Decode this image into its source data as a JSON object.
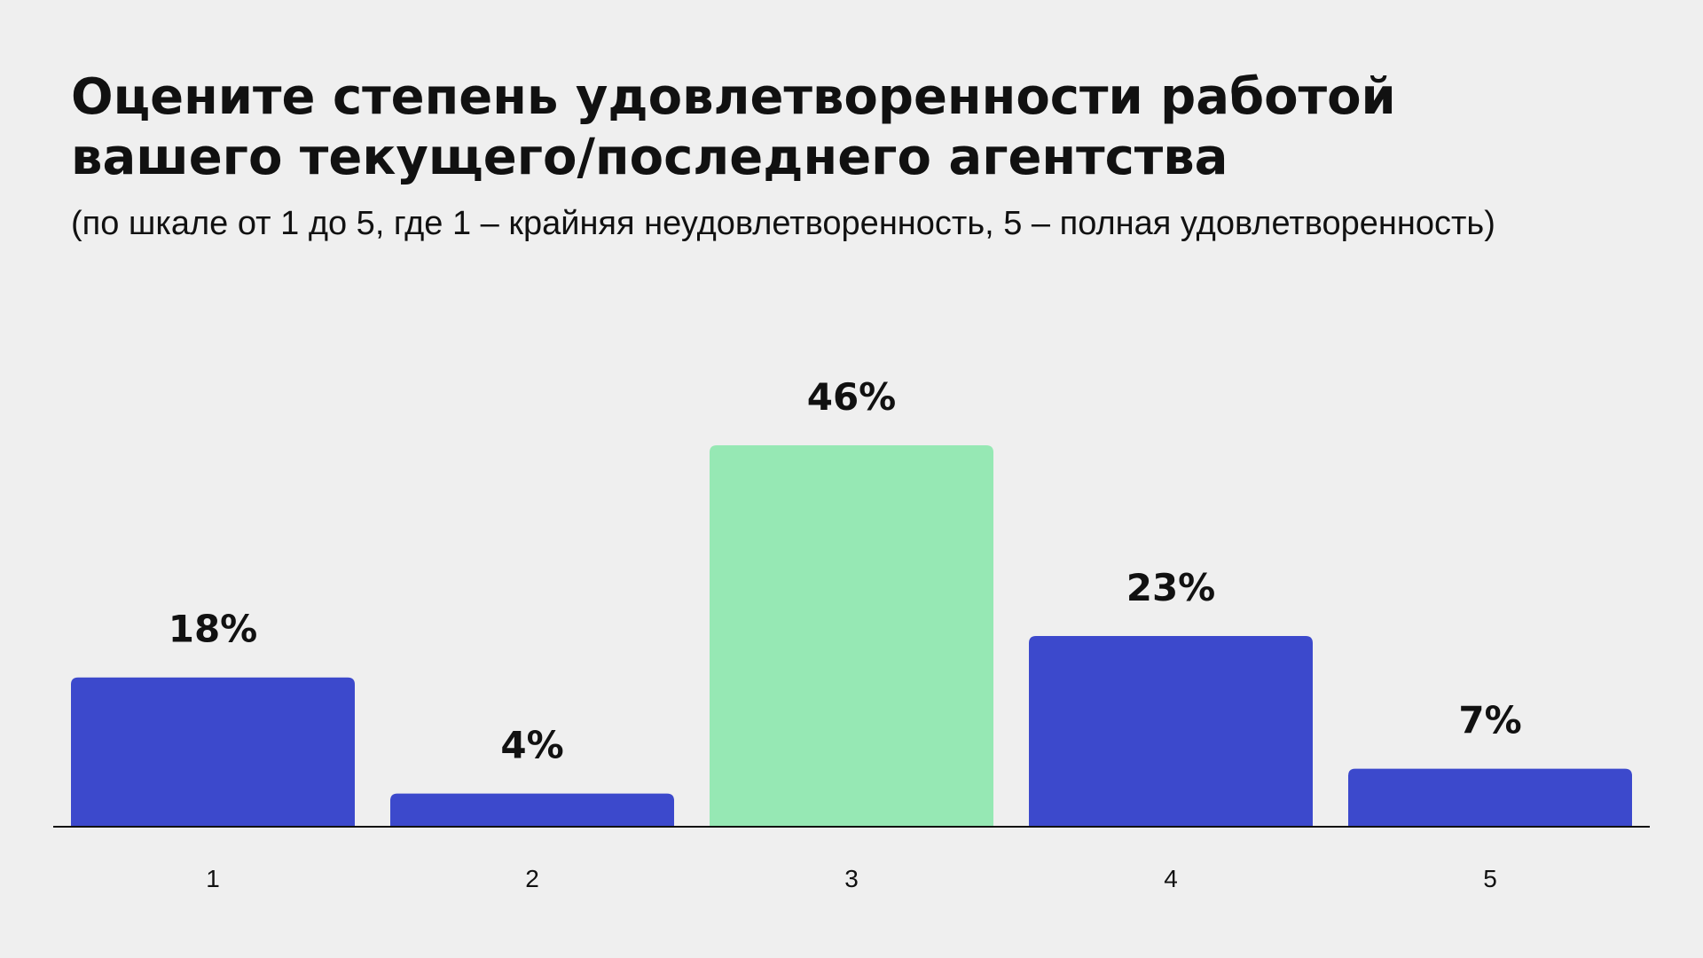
{
  "title_line1": "Оцените степень удовлетворенности работой",
  "title_line2": "вашего текущего/последнего агентства",
  "subtitle": "(по шкале от 1 до 5, где 1 – крайняя неудовлетворенность, 5 – полная удовлетворенность)",
  "colors": {
    "background": "#efefef",
    "primary_bar": "#3c49cc",
    "highlight_bar": "#96e8b4",
    "text": "#111111",
    "axis": "#111111"
  },
  "chart_data": {
    "type": "bar",
    "categories": [
      "1",
      "2",
      "3",
      "4",
      "5"
    ],
    "values": [
      18,
      4,
      46,
      23,
      7
    ],
    "data_labels": [
      "18%",
      "4%",
      "46%",
      "23%",
      "7%"
    ],
    "highlight_index": 2,
    "ylim": [
      0,
      46
    ],
    "grid": false,
    "legend": "none"
  }
}
